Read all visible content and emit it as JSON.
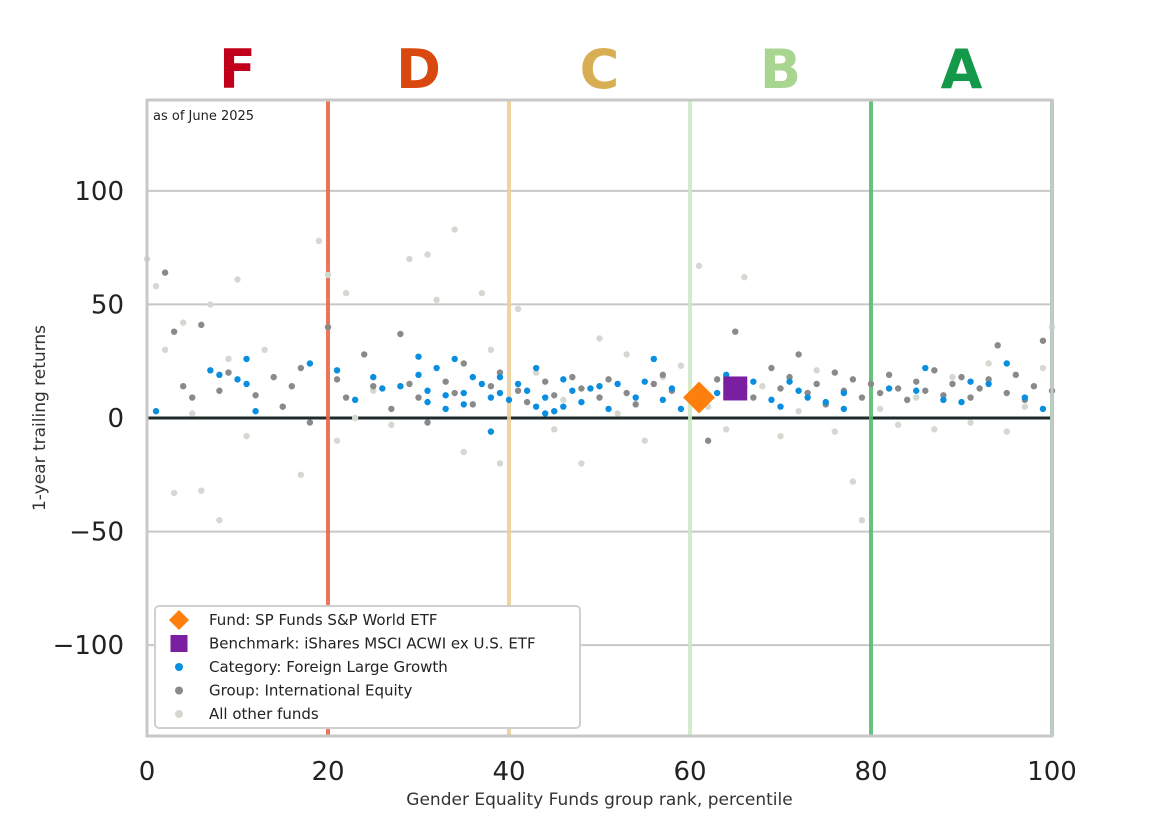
{
  "chart_data": {
    "type": "scatter",
    "title": "",
    "note": "as of June 2025",
    "xlabel": "Gender Equality Funds group rank, percentile",
    "ylabel": "1-year trailing returns",
    "xlim": [
      0,
      100
    ],
    "ylim": [
      -140,
      140
    ],
    "xticks": [
      0,
      20,
      40,
      60,
      80,
      100
    ],
    "yticks": [
      -100,
      -50,
      0,
      50,
      100
    ],
    "ytick_labels": [
      "−100",
      "−50",
      "0",
      "50",
      "100"
    ],
    "grid": "horizontal",
    "legend_position": "lower-left",
    "grade_bands": [
      {
        "label": "F",
        "from": 0,
        "to": 20,
        "color": "#c0001a",
        "line_color": "#e8684a"
      },
      {
        "label": "D",
        "from": 20,
        "to": 40,
        "color": "#d9480f",
        "line_color": "#eecf98"
      },
      {
        "label": "C",
        "from": 40,
        "to": 60,
        "color": "#d8ae52",
        "line_color": "#cde9c6"
      },
      {
        "label": "B",
        "from": 60,
        "to": 80,
        "color": "#a8d690",
        "line_color": "#57bb72"
      },
      {
        "label": "A",
        "from": 80,
        "to": 100,
        "color": "#14994a",
        "line_color": "#8fd0a0"
      }
    ],
    "grade_lines": [
      20,
      40,
      60,
      80,
      100
    ],
    "series": [
      {
        "name": "Fund: SP Funds S&P World ETF",
        "marker": "diamond",
        "color": "#ff7f0e",
        "points": [
          [
            61,
            9
          ]
        ]
      },
      {
        "name": "Benchmark: iShares MSCI ACWI ex U.S. ETF",
        "marker": "square",
        "color": "#7b1fa2",
        "points": [
          [
            65,
            13
          ]
        ]
      },
      {
        "name": "Category: Foreign Large Growth",
        "marker": "circle",
        "color": "#0a8fe0",
        "points": [
          [
            1,
            3
          ],
          [
            7,
            21
          ],
          [
            8,
            19
          ],
          [
            10,
            17
          ],
          [
            11,
            26
          ],
          [
            11,
            15
          ],
          [
            12,
            3
          ],
          [
            18,
            24
          ],
          [
            21,
            21
          ],
          [
            23,
            8
          ],
          [
            25,
            18
          ],
          [
            26,
            13
          ],
          [
            28,
            14
          ],
          [
            30,
            27
          ],
          [
            30,
            19
          ],
          [
            31,
            12
          ],
          [
            31,
            7
          ],
          [
            32,
            22
          ],
          [
            33,
            10
          ],
          [
            33,
            4
          ],
          [
            34,
            26
          ],
          [
            35,
            11
          ],
          [
            35,
            6
          ],
          [
            36,
            18
          ],
          [
            37,
            15
          ],
          [
            38,
            9
          ],
          [
            38,
            -6
          ],
          [
            39,
            18
          ],
          [
            39,
            11
          ],
          [
            40,
            8
          ],
          [
            41,
            15
          ],
          [
            42,
            12
          ],
          [
            43,
            22
          ],
          [
            43,
            5
          ],
          [
            44,
            9
          ],
          [
            44,
            2
          ],
          [
            45,
            3
          ],
          [
            46,
            17
          ],
          [
            46,
            5
          ],
          [
            47,
            12
          ],
          [
            48,
            7
          ],
          [
            49,
            13
          ],
          [
            50,
            14
          ],
          [
            51,
            4
          ],
          [
            52,
            15
          ],
          [
            54,
            9
          ],
          [
            55,
            16
          ],
          [
            56,
            26
          ],
          [
            57,
            8
          ],
          [
            58,
            13
          ],
          [
            59,
            4
          ],
          [
            61,
            14
          ],
          [
            63,
            11
          ],
          [
            64,
            19
          ],
          [
            67,
            16
          ],
          [
            69,
            8
          ],
          [
            70,
            5
          ],
          [
            71,
            16
          ],
          [
            72,
            12
          ],
          [
            73,
            9
          ],
          [
            75,
            7
          ],
          [
            77,
            11
          ],
          [
            77,
            4
          ],
          [
            82,
            13
          ],
          [
            85,
            12
          ],
          [
            86,
            22
          ],
          [
            88,
            8
          ],
          [
            90,
            7
          ],
          [
            91,
            16
          ],
          [
            93,
            15
          ],
          [
            95,
            24
          ],
          [
            97,
            9
          ],
          [
            99,
            4
          ]
        ]
      },
      {
        "name": "Group: International Equity",
        "marker": "circle",
        "color": "#8a8a8a",
        "points": [
          [
            2,
            64
          ],
          [
            3,
            38
          ],
          [
            4,
            14
          ],
          [
            5,
            9
          ],
          [
            6,
            41
          ],
          [
            8,
            12
          ],
          [
            9,
            20
          ],
          [
            12,
            10
          ],
          [
            14,
            18
          ],
          [
            15,
            5
          ],
          [
            16,
            14
          ],
          [
            17,
            22
          ],
          [
            18,
            -2
          ],
          [
            20,
            40
          ],
          [
            21,
            17
          ],
          [
            22,
            9
          ],
          [
            24,
            28
          ],
          [
            25,
            14
          ],
          [
            27,
            4
          ],
          [
            28,
            37
          ],
          [
            29,
            15
          ],
          [
            30,
            9
          ],
          [
            31,
            -2
          ],
          [
            33,
            16
          ],
          [
            34,
            11
          ],
          [
            35,
            24
          ],
          [
            36,
            6
          ],
          [
            38,
            14
          ],
          [
            39,
            20
          ],
          [
            41,
            12
          ],
          [
            42,
            7
          ],
          [
            44,
            16
          ],
          [
            45,
            10
          ],
          [
            47,
            18
          ],
          [
            48,
            13
          ],
          [
            50,
            9
          ],
          [
            51,
            17
          ],
          [
            53,
            11
          ],
          [
            54,
            6
          ],
          [
            56,
            15
          ],
          [
            57,
            19
          ],
          [
            58,
            12
          ],
          [
            60,
            8
          ],
          [
            62,
            -10
          ],
          [
            63,
            17
          ],
          [
            65,
            38
          ],
          [
            66,
            14
          ],
          [
            67,
            9
          ],
          [
            69,
            22
          ],
          [
            70,
            13
          ],
          [
            71,
            18
          ],
          [
            72,
            28
          ],
          [
            73,
            11
          ],
          [
            74,
            15
          ],
          [
            75,
            6
          ],
          [
            76,
            20
          ],
          [
            77,
            12
          ],
          [
            78,
            17
          ],
          [
            79,
            9
          ],
          [
            80,
            15
          ],
          [
            81,
            11
          ],
          [
            82,
            19
          ],
          [
            83,
            13
          ],
          [
            84,
            8
          ],
          [
            85,
            16
          ],
          [
            86,
            12
          ],
          [
            87,
            21
          ],
          [
            88,
            10
          ],
          [
            89,
            15
          ],
          [
            90,
            18
          ],
          [
            91,
            9
          ],
          [
            92,
            13
          ],
          [
            93,
            17
          ],
          [
            94,
            32
          ],
          [
            95,
            11
          ],
          [
            96,
            19
          ],
          [
            97,
            8
          ],
          [
            98,
            14
          ],
          [
            99,
            34
          ],
          [
            100,
            12
          ]
        ]
      },
      {
        "name": "All other funds",
        "marker": "circle",
        "color": "#d3d9d0",
        "points": [
          [
            0,
            70
          ],
          [
            1,
            58
          ],
          [
            2,
            30
          ],
          [
            3,
            -33
          ],
          [
            4,
            42
          ],
          [
            5,
            2
          ],
          [
            6,
            -32
          ],
          [
            7,
            50
          ],
          [
            8,
            -45
          ],
          [
            9,
            26
          ],
          [
            10,
            61
          ],
          [
            11,
            -8
          ],
          [
            13,
            30
          ],
          [
            15,
            5
          ],
          [
            17,
            -25
          ],
          [
            19,
            78
          ],
          [
            20,
            63
          ],
          [
            21,
            -10
          ],
          [
            22,
            55
          ],
          [
            23,
            0
          ],
          [
            25,
            12
          ],
          [
            27,
            -3
          ],
          [
            29,
            70
          ],
          [
            31,
            72
          ],
          [
            32,
            52
          ],
          [
            34,
            83
          ],
          [
            35,
            -15
          ],
          [
            37,
            55
          ],
          [
            38,
            30
          ],
          [
            39,
            -20
          ],
          [
            41,
            48
          ],
          [
            43,
            20
          ],
          [
            45,
            -5
          ],
          [
            46,
            8
          ],
          [
            48,
            -20
          ],
          [
            50,
            35
          ],
          [
            52,
            2
          ],
          [
            53,
            28
          ],
          [
            55,
            -10
          ],
          [
            57,
            18
          ],
          [
            59,
            23
          ],
          [
            61,
            67
          ],
          [
            62,
            5
          ],
          [
            64,
            -5
          ],
          [
            66,
            62
          ],
          [
            68,
            14
          ],
          [
            70,
            -8
          ],
          [
            72,
            3
          ],
          [
            74,
            21
          ],
          [
            76,
            -6
          ],
          [
            78,
            -28
          ],
          [
            79,
            -45
          ],
          [
            81,
            4
          ],
          [
            83,
            -3
          ],
          [
            85,
            9
          ],
          [
            87,
            -5
          ],
          [
            89,
            18
          ],
          [
            91,
            -2
          ],
          [
            93,
            24
          ],
          [
            95,
            -6
          ],
          [
            97,
            5
          ],
          [
            99,
            22
          ],
          [
            100,
            40
          ]
        ]
      }
    ]
  }
}
